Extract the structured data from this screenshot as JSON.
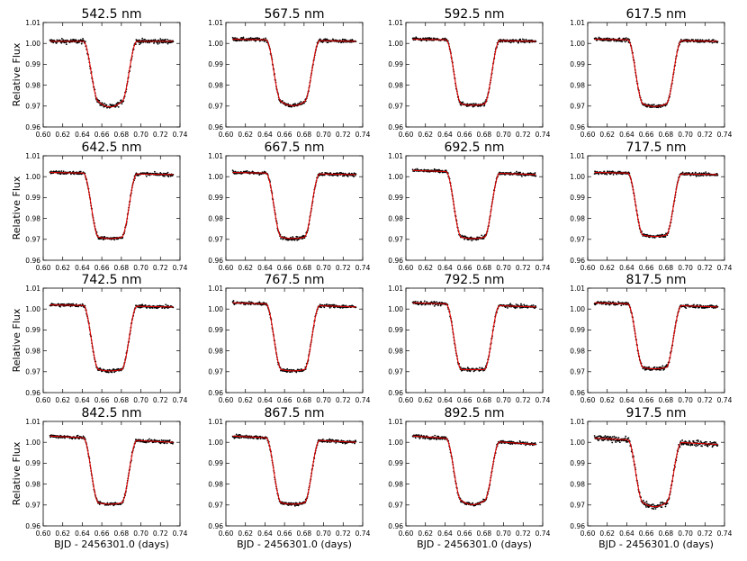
{
  "figure": {
    "ylabel": "Relative Flux",
    "xlabel": "BJD - 2456301.0 (days)"
  },
  "chart_data": {
    "type": "scatter",
    "grid": false,
    "xlim": [
      0.6,
      0.74
    ],
    "ylim": [
      0.96,
      1.01
    ],
    "xticks": [
      "0.60",
      "0.62",
      "0.64",
      "0.66",
      "0.68",
      "0.70",
      "0.72",
      "0.74"
    ],
    "yticks": [
      "0.96",
      "0.97",
      "0.98",
      "0.99",
      "1.00",
      "1.01"
    ],
    "ylabel": "Relative Flux",
    "xlabel": "BJD - 2456301.0 (days)",
    "model_color": "#dd0000",
    "point_color": "#000000",
    "transit": {
      "t_ingress_start": 0.641,
      "t_ingress_end": 0.657,
      "t_egress_start": 0.68,
      "t_egress_end": 0.696,
      "x_range": [
        0.607,
        0.733
      ]
    },
    "panels": [
      {
        "title": "542.5 nm",
        "baseline_start": 1.001,
        "baseline_end": 1.001,
        "depth_level": 0.972,
        "bottom_min": 0.968
      },
      {
        "title": "567.5 nm",
        "baseline_start": 1.002,
        "baseline_end": 1.001,
        "depth_level": 0.972,
        "bottom_min": 0.969
      },
      {
        "title": "592.5 nm",
        "baseline_start": 1.002,
        "baseline_end": 1.001,
        "depth_level": 0.971,
        "bottom_min": 0.97
      },
      {
        "title": "617.5 nm",
        "baseline_start": 1.002,
        "baseline_end": 1.001,
        "depth_level": 0.971,
        "bottom_min": 0.969
      },
      {
        "title": "642.5 nm",
        "baseline_start": 1.002,
        "baseline_end": 1.001,
        "depth_level": 0.971,
        "bottom_min": 0.97
      },
      {
        "title": "667.5 nm",
        "baseline_start": 1.002,
        "baseline_end": 1.001,
        "depth_level": 0.971,
        "bottom_min": 0.97
      },
      {
        "title": "692.5 nm",
        "baseline_start": 1.003,
        "baseline_end": 1.001,
        "depth_level": 0.971,
        "bottom_min": 0.97
      },
      {
        "title": "717.5 nm",
        "baseline_start": 1.002,
        "baseline_end": 1.001,
        "depth_level": 0.972,
        "bottom_min": 0.971
      },
      {
        "title": "742.5 nm",
        "baseline_start": 1.002,
        "baseline_end": 1.001,
        "depth_level": 0.971,
        "bottom_min": 0.97
      },
      {
        "title": "767.5 nm",
        "baseline_start": 1.003,
        "baseline_end": 1.001,
        "depth_level": 0.971,
        "bottom_min": 0.97
      },
      {
        "title": "792.5 nm",
        "baseline_start": 1.003,
        "baseline_end": 1.001,
        "depth_level": 0.971,
        "bottom_min": 0.971
      },
      {
        "title": "817.5 nm",
        "baseline_start": 1.003,
        "baseline_end": 1.001,
        "depth_level": 0.972,
        "bottom_min": 0.971
      },
      {
        "title": "842.5 nm",
        "baseline_start": 1.003,
        "baseline_end": 1.0,
        "depth_level": 0.971,
        "bottom_min": 0.97
      },
      {
        "title": "867.5 nm",
        "baseline_start": 1.003,
        "baseline_end": 1.0,
        "depth_level": 0.971,
        "bottom_min": 0.97
      },
      {
        "title": "892.5 nm",
        "baseline_start": 1.003,
        "baseline_end": 0.999,
        "depth_level": 0.972,
        "bottom_min": 0.969
      },
      {
        "title": "917.5 nm",
        "baseline_start": 1.002,
        "baseline_end": 0.999,
        "depth_level": 0.971,
        "bottom_min": 0.968
      }
    ]
  }
}
